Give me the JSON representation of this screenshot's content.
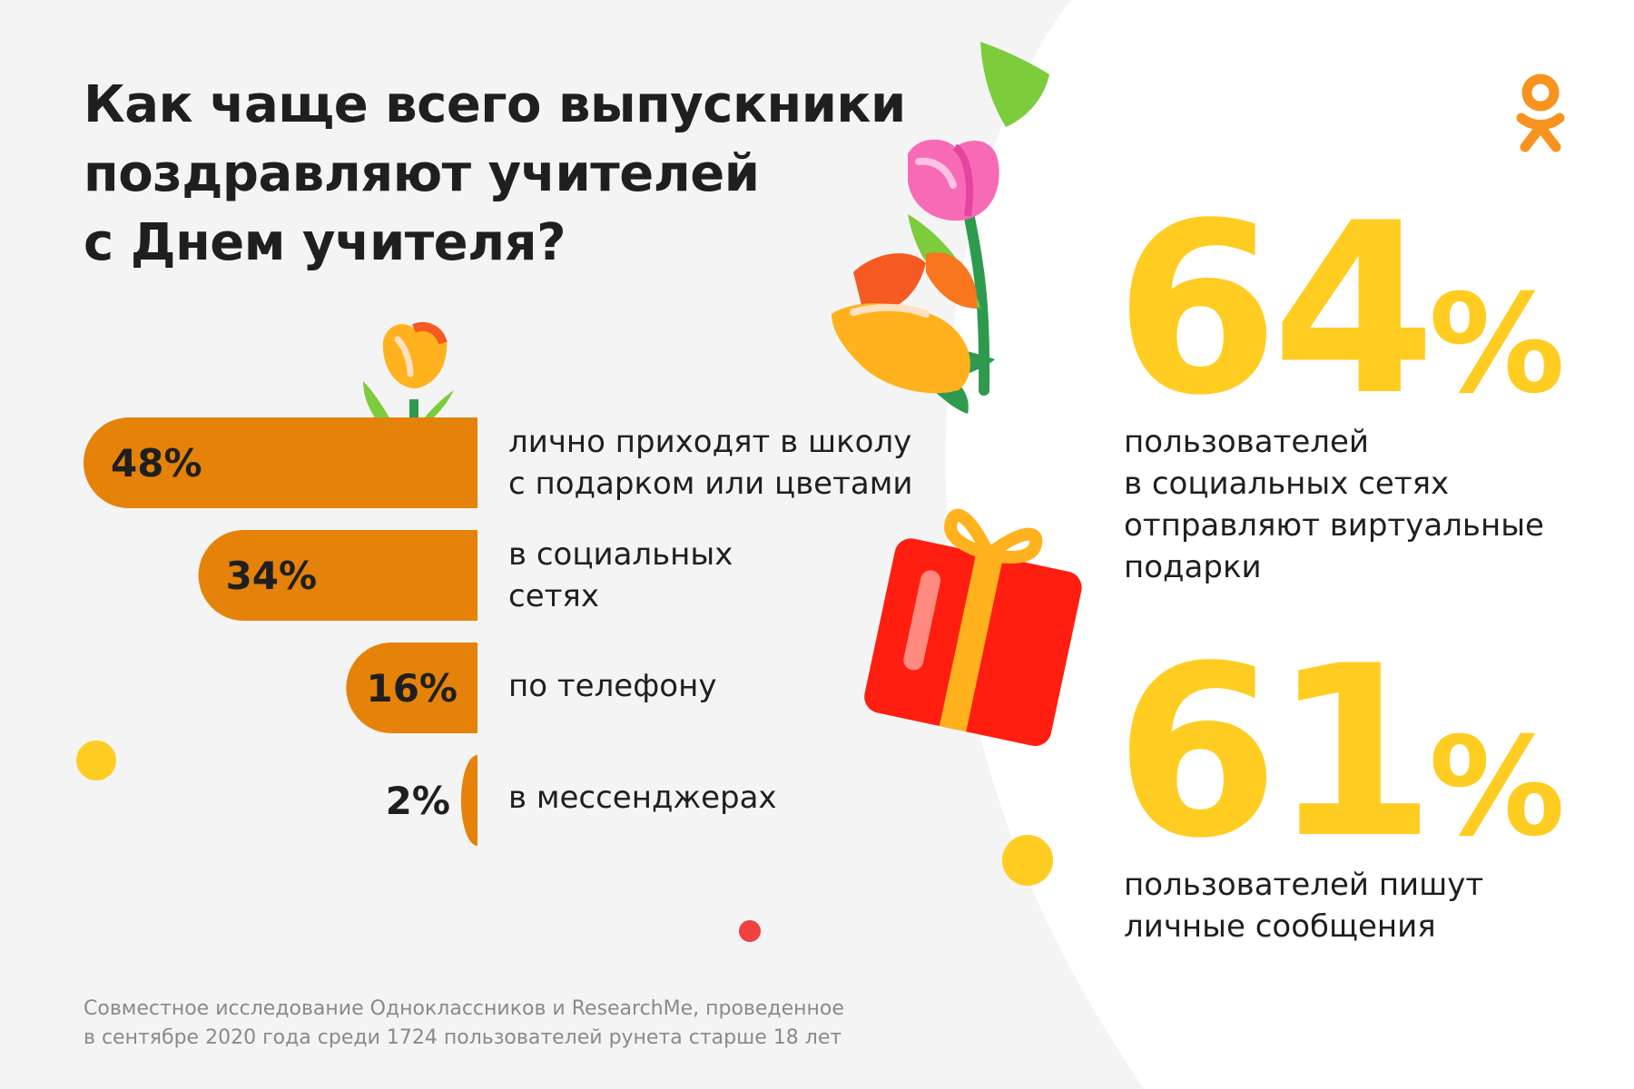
{
  "title_lines": [
    "Как чаще всего выпускники",
    "поздравляют учителей",
    "с Днем учителя?"
  ],
  "colors": {
    "bar": "#e5820a",
    "accent_yellow": "#ffcc22",
    "text": "#1f1f1f",
    "muted": "#8a8a8a",
    "red_dot": "#f04040"
  },
  "chart_data": {
    "type": "bar",
    "orientation": "horizontal",
    "categories": [
      [
        "лично приходят в школу",
        "с подарком или цветами"
      ],
      [
        "в социальных",
        "сетях"
      ],
      [
        "по телефону"
      ],
      [
        "в мессенджерах"
      ]
    ],
    "values": [
      48,
      34,
      16,
      2
    ],
    "value_labels": [
      "48%",
      "34%",
      "16%",
      "2%"
    ],
    "unit": "%",
    "xlim": [
      0,
      48
    ]
  },
  "stats": [
    {
      "value": "64",
      "suffix": "%",
      "desc_lines": [
        "пользователей",
        "в социальных сетях",
        "отправляют виртуальные",
        "подарки"
      ]
    },
    {
      "value": "61",
      "suffix": "%",
      "desc_lines": [
        "пользователей пишут",
        "личные сообщения"
      ]
    }
  ],
  "footnote_lines": [
    "Совместное исследование Одноклассников и ResearchMe, проведенное",
    "в сентябре 2020 года среди 1724 пользователей рунета старше 18 лет"
  ],
  "logo": "odnoklassniki-logo",
  "decorations": [
    "tulip-icon",
    "flower-bouquet-icon",
    "gift-box-icon",
    "yellow-dot",
    "red-dot"
  ]
}
